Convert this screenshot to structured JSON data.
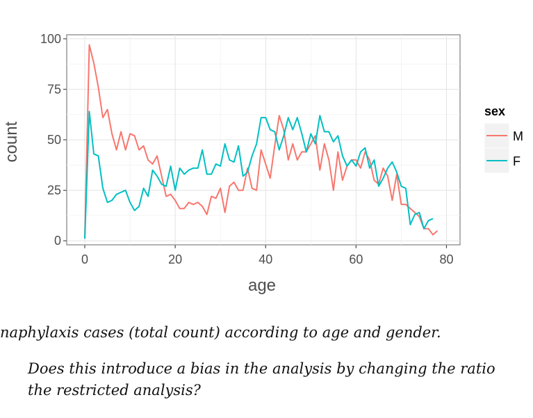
{
  "chart_data": {
    "type": "line",
    "xlabel": "age",
    "ylabel": "count",
    "xlim": [
      -4,
      83
    ],
    "ylim": [
      -2,
      102
    ],
    "x_ticks": [
      0,
      20,
      40,
      60,
      80
    ],
    "y_ticks": [
      0,
      25,
      50,
      75,
      100
    ],
    "grid": true,
    "legend": {
      "title": "sex",
      "placement": "right"
    },
    "series": [
      {
        "name": "M",
        "color": "#F8766D",
        "x": [
          0,
          1,
          2,
          3,
          4,
          5,
          6,
          7,
          8,
          9,
          10,
          11,
          12,
          13,
          14,
          15,
          16,
          17,
          18,
          19,
          20,
          21,
          22,
          23,
          24,
          25,
          26,
          27,
          28,
          29,
          30,
          31,
          32,
          33,
          34,
          35,
          36,
          37,
          38,
          39,
          40,
          41,
          42,
          43,
          44,
          45,
          46,
          47,
          48,
          49,
          50,
          51,
          52,
          53,
          54,
          55,
          56,
          57,
          58,
          59,
          60,
          61,
          62,
          63,
          64,
          65,
          66,
          67,
          68,
          69,
          70,
          71,
          72,
          73,
          74,
          75,
          76,
          77,
          78,
          79,
          80
        ],
        "y": [
          2,
          97,
          88,
          76,
          61,
          65,
          53,
          45,
          54,
          45,
          53,
          52,
          45,
          47,
          40,
          38,
          42,
          32,
          22,
          23,
          20,
          16,
          16,
          19,
          18,
          19,
          17,
          13,
          22,
          21,
          26,
          14,
          27,
          29,
          25,
          25,
          36,
          26,
          25,
          45,
          38,
          31,
          47,
          62,
          55,
          40,
          48,
          40,
          44,
          44,
          48,
          52,
          35,
          48,
          40,
          25,
          44,
          30,
          37,
          40,
          40,
          36,
          44,
          40,
          30,
          28,
          36,
          32,
          20,
          33,
          18,
          18,
          16,
          14,
          12,
          6,
          6,
          3,
          5,
          null,
          null
        ],
        "note_x_range": "data shown from age 0 to 80"
      },
      {
        "name": "F",
        "color": "#00BFC4",
        "x": [
          0,
          1,
          2,
          3,
          4,
          5,
          6,
          7,
          8,
          9,
          10,
          11,
          12,
          13,
          14,
          15,
          16,
          17,
          18,
          19,
          20,
          21,
          22,
          23,
          24,
          25,
          26,
          27,
          28,
          29,
          30,
          31,
          32,
          33,
          34,
          35,
          36,
          37,
          38,
          39,
          40,
          41,
          42,
          43,
          44,
          45,
          46,
          47,
          48,
          49,
          50,
          51,
          52,
          53,
          54,
          55,
          56,
          57,
          58,
          59,
          60,
          61,
          62,
          63,
          64,
          65,
          66,
          67,
          68,
          69,
          70,
          71,
          72,
          73,
          74,
          75,
          76,
          77,
          78,
          79,
          80
        ],
        "y": [
          1,
          64,
          43,
          42,
          26,
          19,
          20,
          23,
          24,
          25,
          19,
          15,
          17,
          26,
          22,
          35,
          32,
          28,
          27,
          37,
          25,
          36,
          33,
          35,
          36,
          36,
          45,
          33,
          33,
          38,
          37,
          48,
          40,
          39,
          47,
          32,
          34,
          42,
          48,
          61,
          61,
          55,
          54,
          45,
          52,
          61,
          55,
          61,
          53,
          44,
          53,
          48,
          62,
          54,
          54,
          49,
          52,
          42,
          37,
          40,
          37,
          44,
          46,
          36,
          40,
          27,
          31,
          36,
          39,
          34,
          27,
          26,
          8,
          13,
          14,
          6,
          10,
          11,
          null,
          null,
          null
        ]
      }
    ]
  },
  "caption": {
    "line1": "naphylaxis cases (total count) according to age and gender.",
    "question_line1": "Does this introduce a bias in the analysis by changing the ratio",
    "question_line2": "the restricted analysis?"
  }
}
